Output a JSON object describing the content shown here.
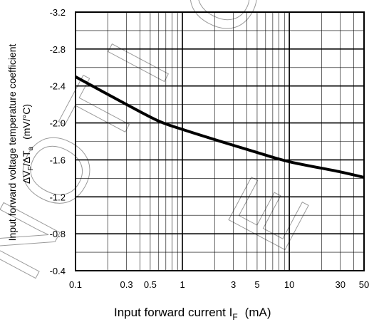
{
  "chart_data": {
    "type": "line",
    "title": "",
    "xlabel_main": "Input forward current I",
    "xlabel_sub": "F",
    "xlabel_unit": "(mA)",
    "ylabel_line1": "Input forward voltage temperature coefficient",
    "ylabel_delta_v": "ΔV",
    "ylabel_sub_f": "F",
    "ylabel_slash": "/ΔT",
    "ylabel_sub_a": "a",
    "ylabel_unit": "(mV/°C)",
    "x_scale": "log",
    "xlim": [
      0.1,
      50
    ],
    "ylim": [
      -0.4,
      -3.2
    ],
    "x_tick_labels": [
      "0.1",
      "0.3",
      "0.5",
      "1",
      "3",
      "5",
      "10",
      "30",
      "50"
    ],
    "y_tick_labels": [
      "-3.2",
      "-2.8",
      "-2.4",
      "-2.0",
      "-1.6",
      "-1.2",
      "-0.8",
      "-0.4"
    ],
    "grid": true,
    "series": [
      {
        "color": "#000000",
        "x": [
          0.1,
          0.3,
          0.6,
          1,
          2,
          5,
          10,
          30,
          50
        ],
        "y": [
          -2.5,
          -2.2,
          -2.02,
          -1.93,
          -1.82,
          -1.68,
          -1.58,
          -1.47,
          -1.41
        ]
      }
    ],
    "watermark": "NOTICE"
  }
}
